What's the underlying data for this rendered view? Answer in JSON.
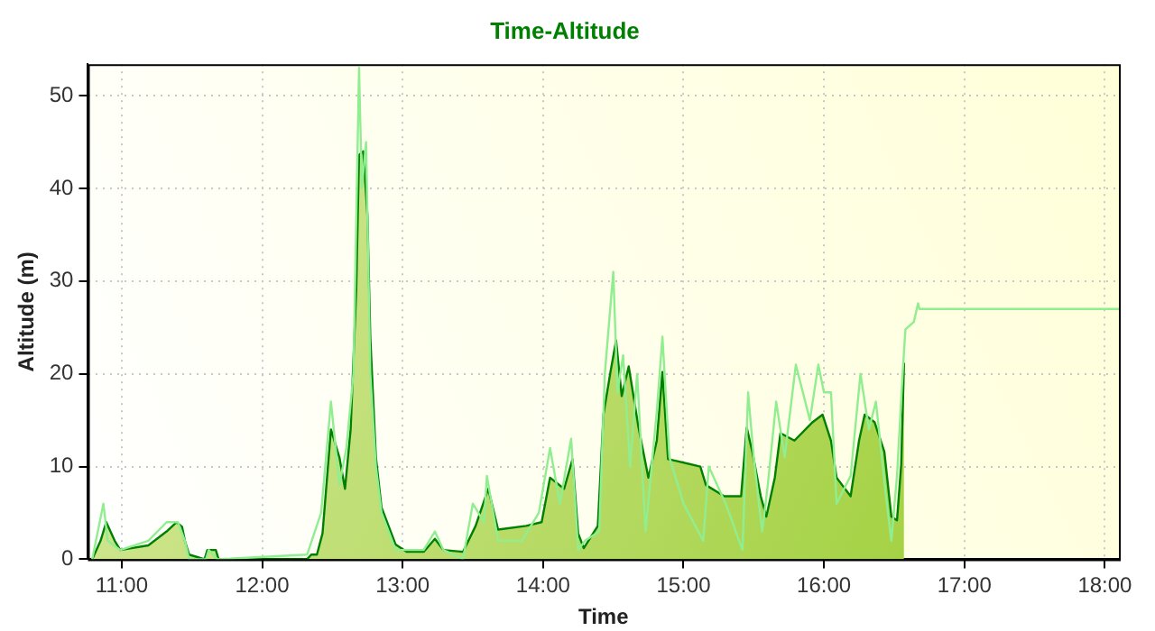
{
  "chart_data": {
    "type": "area",
    "title": "Time-Altitude",
    "xlabel": "Time",
    "ylabel": "Altitude (m)",
    "xlim": [
      10.76,
      18.1
    ],
    "xticks": [
      {
        "value": 11,
        "label": "11:00"
      },
      {
        "value": 12,
        "label": "12:00"
      },
      {
        "value": 13,
        "label": "13:00"
      },
      {
        "value": 14,
        "label": "14:00"
      },
      {
        "value": 15,
        "label": "15:00"
      },
      {
        "value": 16,
        "label": "16:00"
      },
      {
        "value": 17,
        "label": "17:00"
      },
      {
        "value": 18,
        "label": "18:00"
      }
    ],
    "ylim": [
      0,
      53.4
    ],
    "yticks": [
      0,
      10,
      20,
      30,
      40,
      50
    ],
    "grid": true,
    "legend": false,
    "series": [
      {
        "type": "area",
        "color": "#008000",
        "x": [
          10.79,
          10.85,
          10.89,
          10.95,
          10.99,
          11.19,
          11.32,
          11.39,
          11.43,
          11.45,
          11.48,
          11.59,
          11.61,
          11.67,
          11.69,
          12.32,
          12.35,
          12.39,
          12.43,
          12.49,
          12.55,
          12.59,
          12.63,
          12.67,
          12.69,
          12.72,
          12.75,
          12.77,
          12.81,
          12.85,
          12.95,
          13.03,
          13.15,
          13.23,
          13.29,
          13.43,
          13.52,
          13.61,
          13.68,
          13.88,
          13.99,
          14.05,
          14.15,
          14.21,
          14.25,
          14.29,
          14.39,
          14.43,
          14.48,
          14.52,
          14.56,
          14.61,
          14.68,
          14.75,
          14.81,
          14.85,
          14.89,
          14.95,
          15.12,
          15.16,
          15.29,
          15.41,
          15.45,
          15.49,
          15.55,
          15.59,
          15.65,
          15.69,
          15.79,
          15.92,
          15.99,
          16.05,
          16.09,
          16.19,
          16.25,
          16.29,
          16.36,
          16.43,
          16.48,
          16.52,
          16.55,
          16.57
        ],
        "values": [
          0,
          2,
          4,
          2,
          1,
          1.5,
          3,
          4,
          3.5,
          2,
          0.5,
          0,
          1,
          1,
          0,
          0,
          0.5,
          0.5,
          2.8,
          14,
          11,
          7.6,
          14,
          29,
          43.6,
          44,
          37,
          24,
          11,
          5.6,
          1.6,
          0.8,
          0.8,
          2.2,
          1,
          0.8,
          3.6,
          7.6,
          3.2,
          3.6,
          4,
          8.8,
          7.6,
          10.8,
          2.8,
          1.2,
          3.6,
          15.6,
          20.2,
          23.6,
          17.6,
          20.8,
          14.2,
          8.8,
          12.8,
          20.2,
          10.8,
          10.6,
          10,
          8,
          6.8,
          6.8,
          14.2,
          11.6,
          6.8,
          4.6,
          8.8,
          13.6,
          12.8,
          14.8,
          15.6,
          12.8,
          8.8,
          6.8,
          12.8,
          15.6,
          14.8,
          11.6,
          4.6,
          4.2,
          10.2,
          21.2
        ]
      },
      {
        "type": "line",
        "color": "#90ee90",
        "x": [
          10.79,
          10.87,
          10.9,
          10.99,
          11.19,
          11.32,
          11.4,
          11.45,
          11.48,
          11.6,
          11.62,
          11.68,
          12.32,
          12.42,
          12.49,
          12.55,
          12.6,
          12.65,
          12.69,
          12.71,
          12.74,
          12.77,
          12.81,
          12.85,
          12.95,
          13.03,
          13.15,
          13.23,
          13.29,
          13.43,
          13.5,
          13.58,
          13.6,
          13.68,
          13.85,
          13.97,
          14.05,
          14.12,
          14.2,
          14.25,
          14.3,
          14.4,
          14.44,
          14.5,
          14.53,
          14.57,
          14.62,
          14.67,
          14.73,
          14.81,
          14.85,
          14.9,
          15.0,
          15.14,
          15.18,
          15.3,
          15.42,
          15.46,
          15.5,
          15.56,
          15.6,
          15.66,
          15.72,
          15.8,
          15.9,
          15.96,
          16.0,
          16.05,
          16.09,
          16.19,
          16.26,
          16.32,
          16.37,
          16.44,
          16.48,
          16.52,
          16.56,
          16.58,
          16.64,
          16.67,
          16.68,
          18.1
        ],
        "values": [
          0,
          6,
          2,
          1,
          2,
          4,
          4,
          2,
          0,
          0,
          1,
          0,
          0.5,
          5,
          17,
          8,
          12,
          20,
          53,
          40,
          45,
          20,
          10,
          5,
          1,
          1,
          1,
          3,
          1,
          0,
          6,
          4,
          9,
          2,
          2,
          5,
          12,
          6,
          13,
          1,
          2,
          3,
          20,
          31,
          18,
          22,
          10,
          20,
          3,
          16,
          24,
          11,
          6,
          2,
          10,
          6,
          1,
          18,
          11,
          3,
          8,
          17,
          11,
          21,
          15,
          21,
          18,
          18,
          6,
          9,
          20,
          14,
          17,
          7,
          2,
          9,
          20,
          24.8,
          25.6,
          27.6,
          27,
          27
        ]
      }
    ]
  }
}
